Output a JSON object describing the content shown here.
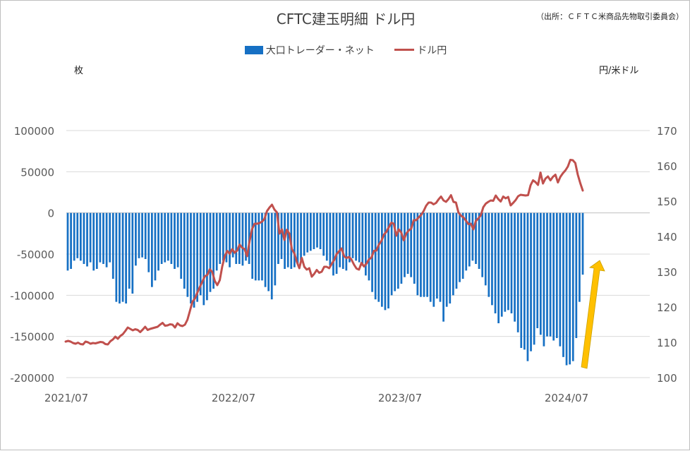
{
  "title": "CFTC建玉明細 ドル円",
  "source": "（出所：ＣＦＴＣ米商品先物取引委員会）",
  "legend": {
    "bar_label": "大口トレーダー・ネット",
    "line_label": "ドル円"
  },
  "axes": {
    "left_unit": "枚",
    "right_unit": "円/米ドル"
  },
  "colors": {
    "bar": "#1670c4",
    "line": "#c0504d",
    "arrow": "#ffc000",
    "grid": "#d9d9d9"
  },
  "chart_data": {
    "type": "bar",
    "title": "CFTC建玉明細 ドル円",
    "xlabel": "",
    "ylabel": "枚",
    "y2label": "円/米ドル",
    "ylim": [
      -200000,
      100000
    ],
    "y2lim": [
      100,
      170
    ],
    "yticks": [
      100000,
      50000,
      0,
      -50000,
      -100000,
      -150000,
      -200000
    ],
    "y2ticks": [
      170,
      160,
      150,
      140,
      130,
      120,
      110,
      100
    ],
    "xtick_labels": [
      "2021/07",
      "2022/07",
      "2023/07",
      "2024/07"
    ],
    "grid": true,
    "legend_position": "top",
    "annotation": "yellow upward arrow near the latest data",
    "series": [
      {
        "name": "大口トレーダー・ネット",
        "type": "bar",
        "axis": "left",
        "values": [
          -70000,
          -68000,
          -58000,
          -55000,
          -58000,
          -62000,
          -65000,
          -60000,
          -70000,
          -68000,
          -60000,
          -62000,
          -66000,
          -60000,
          -80000,
          -108000,
          -110000,
          -108000,
          -110000,
          -92000,
          -98000,
          -64000,
          -55000,
          -54000,
          -56000,
          -72000,
          -90000,
          -82000,
          -70000,
          -62000,
          -60000,
          -58000,
          -62000,
          -68000,
          -66000,
          -80000,
          -92000,
          -102000,
          -110000,
          -115000,
          -108000,
          -100000,
          -112000,
          -106000,
          -96000,
          -92000,
          -70000,
          -62000,
          -58000,
          -60000,
          -66000,
          -54000,
          -62000,
          -62000,
          -64000,
          -58000,
          -62000,
          -80000,
          -82000,
          -82000,
          -82000,
          -90000,
          -95000,
          -105000,
          -88000,
          -62000,
          -56000,
          -68000,
          -66000,
          -68000,
          -66000,
          -62000,
          -58000,
          -52000,
          -48000,
          -46000,
          -44000,
          -42000,
          -44000,
          -52000,
          -58000,
          -64000,
          -76000,
          -74000,
          -66000,
          -68000,
          -70000,
          -60000,
          -55000,
          -58000,
          -60000,
          -64000,
          -76000,
          -82000,
          -96000,
          -105000,
          -108000,
          -114000,
          -118000,
          -116000,
          -100000,
          -95000,
          -92000,
          -86000,
          -78000,
          -74000,
          -78000,
          -86000,
          -100000,
          -102000,
          -102000,
          -102000,
          -108000,
          -114000,
          -104000,
          -108000,
          -132000,
          -114000,
          -110000,
          -100000,
          -92000,
          -84000,
          -80000,
          -70000,
          -65000,
          -58000,
          -62000,
          -68000,
          -78000,
          -88000,
          -102000,
          -112000,
          -122000,
          -134000,
          -126000,
          -120000,
          -118000,
          -122000,
          -132000,
          -145000,
          -164000,
          -166000,
          -180000,
          -168000,
          -160000,
          -140000,
          -148000,
          -162000,
          -150000,
          -150000,
          -155000,
          -152000,
          -162000,
          -175000,
          -185000,
          -184000,
          -180000,
          -152000,
          -108000,
          -75000
        ]
      },
      {
        "name": "ドル円",
        "type": "line",
        "axis": "right",
        "values": [
          110.2,
          110.4,
          110.2,
          109.8,
          109.6,
          109.9,
          109.5,
          109.4,
          110.2,
          110.0,
          109.6,
          109.8,
          109.7,
          109.9,
          110.1,
          110.0,
          109.5,
          109.4,
          110.3,
          110.8,
          111.6,
          111.0,
          111.8,
          112.3,
          113.2,
          114.2,
          113.8,
          113.4,
          113.7,
          113.5,
          112.9,
          113.6,
          114.4,
          113.5,
          113.8,
          114.0,
          114.2,
          114.4,
          115.0,
          115.5,
          114.7,
          114.8,
          115.1,
          115.0,
          114.2,
          115.4,
          114.8,
          114.6,
          115.0,
          116.4,
          118.9,
          121.5,
          122.4,
          124.1,
          125.7,
          127.2,
          128.7,
          129.1,
          130.7,
          129.9,
          127.4,
          126.2,
          127.6,
          131.5,
          134.4,
          135.9,
          135.1,
          136.4,
          135.4,
          136.0,
          137.7,
          136.8,
          136.4,
          134.4,
          138.7,
          142.1,
          143.6,
          143.6,
          143.8,
          144.2,
          145.0,
          147.2,
          148.2,
          149.0,
          147.6,
          146.8,
          140.8,
          142.0,
          139.0,
          141.9,
          140.8,
          136.4,
          135.2,
          132.8,
          131.0,
          133.9,
          131.4,
          130.6,
          131.0,
          128.6,
          129.4,
          130.5,
          129.7,
          130.0,
          131.4,
          131.4,
          131.0,
          132.2,
          133.3,
          135.0,
          135.8,
          136.6,
          134.4,
          133.9,
          134.2,
          133.4,
          132.0,
          130.9,
          130.6,
          132.5,
          131.5,
          132.3,
          133.5,
          134.0,
          135.9,
          136.0,
          137.7,
          138.7,
          140.5,
          141.3,
          142.6,
          143.9,
          143.6,
          140.2,
          142.0,
          141.1,
          138.9,
          140.8,
          141.7,
          142.2,
          144.6,
          144.6,
          145.4,
          146.1,
          147.2,
          148.7,
          149.6,
          149.6,
          149.1,
          149.5,
          150.5,
          151.3,
          150.2,
          149.8,
          150.6,
          151.7,
          149.8,
          149.6,
          146.8,
          145.9,
          145.4,
          144.5,
          143.5,
          143.6,
          142.0,
          144.4,
          145.1,
          146.0,
          148.3,
          149.3,
          149.8,
          150.2,
          150.1,
          151.6,
          150.6,
          149.9,
          151.3,
          150.8,
          151.2,
          148.8,
          149.5,
          150.3,
          151.4,
          151.8,
          151.7,
          151.6,
          151.7,
          154.5,
          155.9,
          155.4,
          154.6,
          158.1,
          155.0,
          156.4,
          157.0,
          155.9,
          156.9,
          157.5,
          155.3,
          156.9,
          157.9,
          158.7,
          159.8,
          161.7,
          161.6,
          160.8,
          157.5,
          155.1,
          153.0
        ],
        "color": "#c0504d"
      }
    ]
  }
}
